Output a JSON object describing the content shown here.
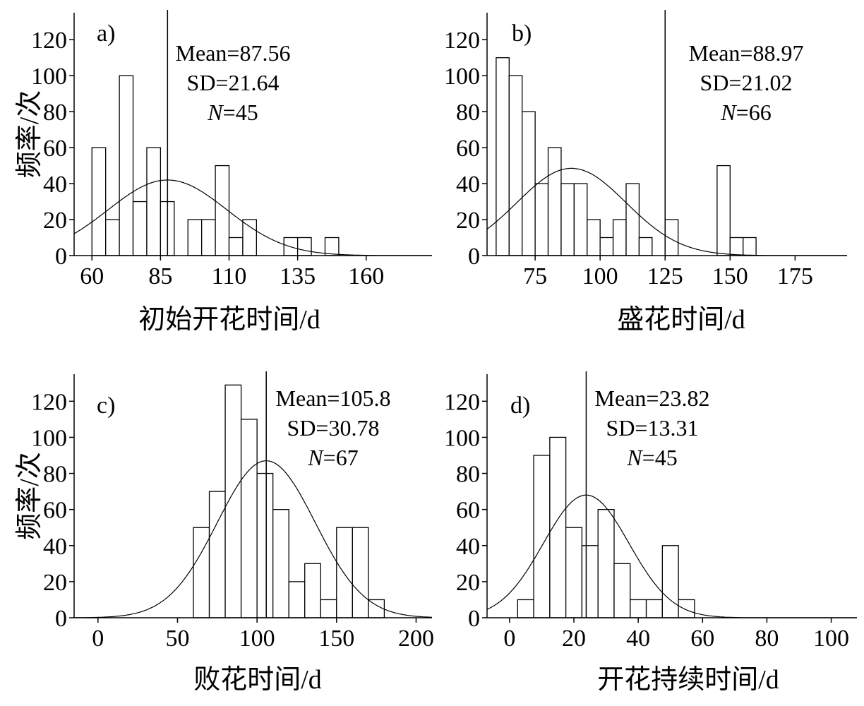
{
  "chart_data": [
    {
      "type": "bar",
      "panel_label": "a)",
      "xlabel": "初始开花时间/d",
      "ylabel": "频率/次",
      "xlim": [
        53.5,
        184
      ],
      "ylim": [
        0,
        135
      ],
      "xticks": [
        60,
        85,
        110,
        135,
        160
      ],
      "yticks": [
        0,
        20,
        40,
        60,
        80,
        100,
        120
      ],
      "bin_width": 5,
      "bins": [
        {
          "x0": 60,
          "x1": 65,
          "value": 60
        },
        {
          "x0": 65,
          "x1": 70,
          "value": 20
        },
        {
          "x0": 70,
          "x1": 75,
          "value": 100
        },
        {
          "x0": 75,
          "x1": 80,
          "value": 30
        },
        {
          "x0": 80,
          "x1": 85,
          "value": 60
        },
        {
          "x0": 85,
          "x1": 90,
          "value": 30
        },
        {
          "x0": 95,
          "x1": 100,
          "value": 20
        },
        {
          "x0": 100,
          "x1": 105,
          "value": 20
        },
        {
          "x0": 105,
          "x1": 110,
          "value": 50
        },
        {
          "x0": 110,
          "x1": 115,
          "value": 10
        },
        {
          "x0": 115,
          "x1": 120,
          "value": 20
        },
        {
          "x0": 130,
          "x1": 135,
          "value": 10
        },
        {
          "x0": 135,
          "x1": 140,
          "value": 10
        },
        {
          "x0": 145,
          "x1": 150,
          "value": 10
        }
      ],
      "mean": 87.56,
      "sd": 21.64,
      "n": 45,
      "curve_peak": 42,
      "stats": {
        "mean_label": "Mean=87.56",
        "sd_label": "SD=21.64",
        "n_name": "N",
        "n_value": "=45"
      }
    },
    {
      "type": "bar",
      "panel_label": "b)",
      "xlabel": "盛花时间/d",
      "ylabel": "",
      "xlim": [
        56.5,
        195
      ],
      "ylim": [
        0,
        135
      ],
      "xticks": [
        75,
        100,
        125,
        150,
        175
      ],
      "yticks": [
        0,
        20,
        40,
        60,
        80,
        100,
        120
      ],
      "bin_width": 5,
      "bins": [
        {
          "x0": 60,
          "x1": 65,
          "value": 110
        },
        {
          "x0": 65,
          "x1": 70,
          "value": 100
        },
        {
          "x0": 70,
          "x1": 75,
          "value": 80
        },
        {
          "x0": 75,
          "x1": 80,
          "value": 40
        },
        {
          "x0": 80,
          "x1": 85,
          "value": 60
        },
        {
          "x0": 85,
          "x1": 90,
          "value": 40
        },
        {
          "x0": 90,
          "x1": 95,
          "value": 40
        },
        {
          "x0": 95,
          "x1": 100,
          "value": 20
        },
        {
          "x0": 100,
          "x1": 105,
          "value": 10
        },
        {
          "x0": 105,
          "x1": 110,
          "value": 20
        },
        {
          "x0": 110,
          "x1": 115,
          "value": 40
        },
        {
          "x0": 115,
          "x1": 120,
          "value": 10
        },
        {
          "x0": 125,
          "x1": 130,
          "value": 20
        },
        {
          "x0": 145,
          "x1": 150,
          "value": 50
        },
        {
          "x0": 150,
          "x1": 155,
          "value": 10
        },
        {
          "x0": 155,
          "x1": 160,
          "value": 10
        }
      ],
      "mean": 88.97,
      "sd": 21.02,
      "n": 66,
      "mean_line_x": 125,
      "curve_peak": 48.5,
      "stats": {
        "mean_label": "Mean=88.97",
        "sd_label": "SD=21.02",
        "n_name": "N",
        "n_value": "=66"
      }
    },
    {
      "type": "bar",
      "panel_label": "c)",
      "xlabel": "败花时间/d",
      "ylabel": "频率/次",
      "xlim": [
        -15,
        210
      ],
      "ylim": [
        0,
        135
      ],
      "xticks": [
        0,
        50,
        100,
        150,
        200
      ],
      "yticks": [
        0,
        20,
        40,
        60,
        80,
        100,
        120
      ],
      "bin_width": 10,
      "bins": [
        {
          "x0": 60,
          "x1": 70,
          "value": 50
        },
        {
          "x0": 70,
          "x1": 80,
          "value": 70
        },
        {
          "x0": 80,
          "x1": 90,
          "value": 129
        },
        {
          "x0": 90,
          "x1": 100,
          "value": 110
        },
        {
          "x0": 100,
          "x1": 110,
          "value": 80
        },
        {
          "x0": 110,
          "x1": 120,
          "value": 60
        },
        {
          "x0": 120,
          "x1": 130,
          "value": 20
        },
        {
          "x0": 130,
          "x1": 140,
          "value": 30
        },
        {
          "x0": 140,
          "x1": 150,
          "value": 10
        },
        {
          "x0": 150,
          "x1": 160,
          "value": 50
        },
        {
          "x0": 160,
          "x1": 170,
          "value": 50
        },
        {
          "x0": 170,
          "x1": 180,
          "value": 10
        }
      ],
      "mean": 105.8,
      "sd": 30.78,
      "n": 67,
      "curve_peak": 87,
      "stats": {
        "mean_label": "Mean=105.8",
        "sd_label": "SD=30.78",
        "n_name": "N",
        "n_value": "=67"
      }
    },
    {
      "type": "bar",
      "panel_label": "d)",
      "xlabel": "开花持续时间/d",
      "ylabel": "",
      "xlim": [
        -7,
        108
      ],
      "ylim": [
        0,
        135
      ],
      "xticks": [
        0,
        20,
        40,
        60,
        80,
        100
      ],
      "yticks": [
        0,
        20,
        40,
        60,
        80,
        100,
        120
      ],
      "bin_width": 5,
      "bins": [
        {
          "x0": 2.5,
          "x1": 7.5,
          "value": 10
        },
        {
          "x0": 7.5,
          "x1": 12.5,
          "value": 90
        },
        {
          "x0": 12.5,
          "x1": 17.5,
          "value": 100
        },
        {
          "x0": 17.5,
          "x1": 22.5,
          "value": 50
        },
        {
          "x0": 22.5,
          "x1": 27.5,
          "value": 40
        },
        {
          "x0": 27.5,
          "x1": 32.5,
          "value": 60
        },
        {
          "x0": 32.5,
          "x1": 37.5,
          "value": 30
        },
        {
          "x0": 37.5,
          "x1": 42.5,
          "value": 10
        },
        {
          "x0": 42.5,
          "x1": 47.5,
          "value": 10
        },
        {
          "x0": 47.5,
          "x1": 52.5,
          "value": 40
        },
        {
          "x0": 52.5,
          "x1": 57.5,
          "value": 10
        }
      ],
      "mean": 23.82,
      "sd": 13.31,
      "n": 45,
      "curve_peak": 68,
      "stats": {
        "mean_label": "Mean=23.82",
        "sd_label": "SD=13.31",
        "n_name": "N",
        "n_value": "=45"
      }
    }
  ]
}
